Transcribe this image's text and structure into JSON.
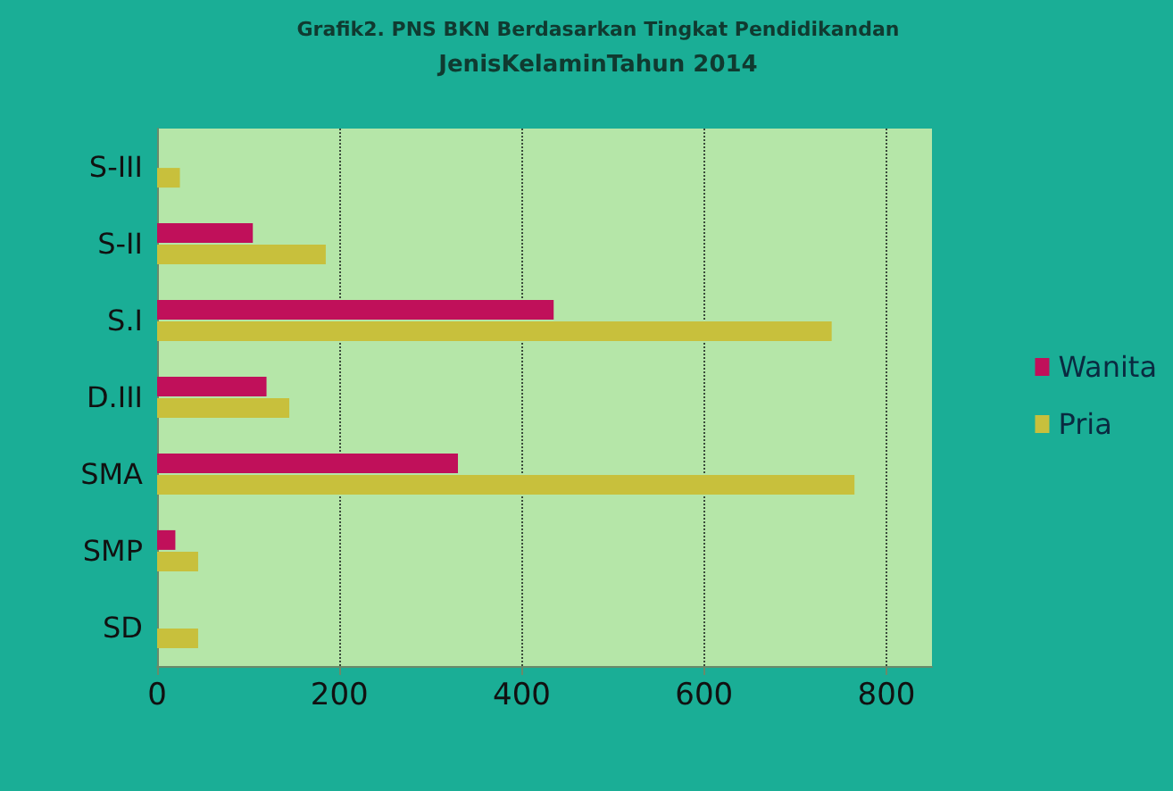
{
  "chart_data": {
    "type": "bar",
    "orientation": "horizontal",
    "title": "Grafik2. PNS BKN Berdasarkan Tingkat Pendidikandan",
    "subtitle": "JenisKelaminTahun 2014",
    "categories": [
      "S-III",
      "S-II",
      "S.I",
      "D.III",
      "SMA",
      "SMP",
      "SD"
    ],
    "series": [
      {
        "name": "Wanita",
        "color": "#c0105a",
        "values": [
          0,
          105,
          435,
          120,
          330,
          20,
          0
        ]
      },
      {
        "name": "Pria",
        "color": "#c8c03c",
        "values": [
          25,
          185,
          740,
          145,
          765,
          45,
          45
        ]
      }
    ],
    "xlim": [
      0,
      850
    ],
    "xticks": [
      0,
      200,
      400,
      600,
      800
    ],
    "grid": "x",
    "legend": "right"
  }
}
